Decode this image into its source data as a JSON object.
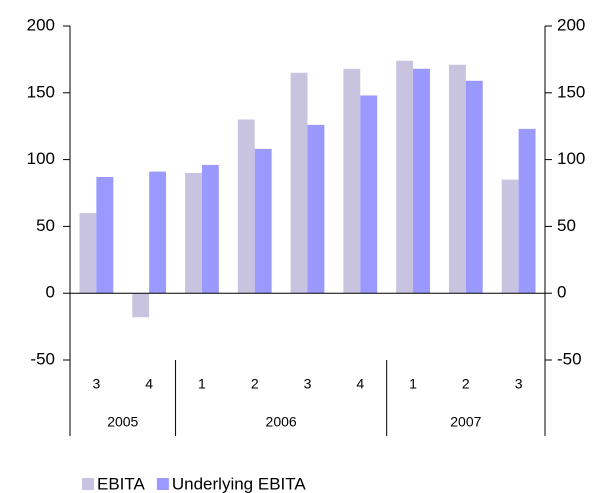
{
  "chart_data": {
    "type": "bar",
    "groups": [
      {
        "name": "2005",
        "categories": [
          "3",
          "4"
        ]
      },
      {
        "name": "2006",
        "categories": [
          "1",
          "2",
          "3",
          "4"
        ]
      },
      {
        "name": "2007",
        "categories": [
          "1",
          "2",
          "3"
        ]
      }
    ],
    "series": [
      {
        "name": "EBITA",
        "color": "#c8c4e0",
        "values": [
          60,
          -18,
          90,
          130,
          165,
          168,
          174,
          171,
          85
        ]
      },
      {
        "name": "Underlying EBITA",
        "color": "#9999ff",
        "values": [
          87,
          91,
          96,
          108,
          126,
          148,
          168,
          159,
          123
        ]
      }
    ],
    "ylim": [
      -50,
      200
    ],
    "yticks": [
      -50,
      0,
      50,
      100,
      150,
      200
    ],
    "y2lim": [
      -50,
      200
    ],
    "y2ticks": [
      -50,
      0,
      50,
      100,
      150,
      200
    ],
    "legend": "bottom-left"
  }
}
